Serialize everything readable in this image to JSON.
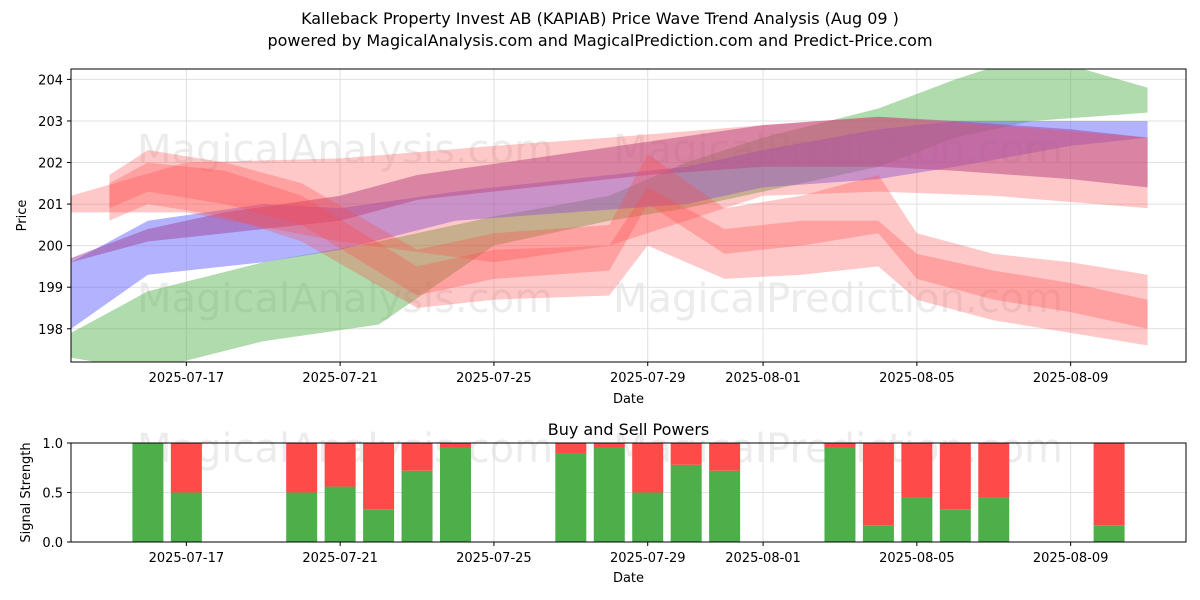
{
  "title": "Kalleback Property Invest AB (KAPIAB) Price Wave Trend Analysis (Aug 09 )",
  "subtitle": "powered by MagicalAnalysis.com and MagicalPrediction.com and Predict-Price.com",
  "watermarks": [
    "MagicalAnalysis.com",
    "MagicalPrediction.com"
  ],
  "colors": {
    "green": "#4daf4a",
    "red": "#ff4a4a",
    "blue": "#6666ff",
    "purple": "#a04fa0"
  },
  "chart_data": [
    {
      "type": "area",
      "title": "",
      "xlabel": "Date",
      "ylabel": "Price",
      "xlim": [
        "2025-07-14",
        "2025-08-12"
      ],
      "ylim": [
        197.2,
        204.25
      ],
      "x_ticks": [
        "2025-07-17",
        "2025-07-21",
        "2025-07-25",
        "2025-07-29",
        "2025-08-01",
        "2025-08-05",
        "2025-08-09"
      ],
      "y_ticks": [
        198,
        199,
        200,
        201,
        202,
        203,
        204
      ],
      "grid": true,
      "bands": [
        {
          "color": "green",
          "x": [
            "2025-07-14",
            "2025-07-16",
            "2025-07-19",
            "2025-07-22",
            "2025-07-25",
            "2025-07-28",
            "2025-07-30",
            "2025-08-01",
            "2025-08-04",
            "2025-08-06",
            "2025-08-08",
            "2025-08-11"
          ],
          "upper": [
            197.9,
            198.9,
            199.6,
            200.1,
            200.7,
            201.2,
            202.0,
            202.6,
            203.3,
            204.0,
            204.6,
            203.8
          ],
          "lower": [
            197.3,
            197.0,
            197.7,
            198.1,
            200.0,
            200.6,
            200.9,
            201.3,
            201.9,
            202.6,
            203.0,
            203.2
          ]
        },
        {
          "color": "blue",
          "x": [
            "2025-07-14",
            "2025-07-16",
            "2025-07-19",
            "2025-07-21",
            "2025-07-24",
            "2025-07-27",
            "2025-07-30",
            "2025-08-01",
            "2025-08-04",
            "2025-08-06",
            "2025-08-09",
            "2025-08-11"
          ],
          "upper": [
            199.6,
            200.6,
            201.0,
            200.9,
            201.3,
            201.6,
            201.9,
            202.3,
            202.8,
            203.0,
            203.0,
            203.0
          ],
          "lower": [
            198.0,
            199.3,
            199.6,
            199.9,
            200.6,
            200.8,
            201.0,
            201.4,
            201.6,
            201.9,
            202.4,
            202.6
          ]
        },
        {
          "color": "purple",
          "x": [
            "2025-07-14",
            "2025-07-16",
            "2025-07-18",
            "2025-07-21",
            "2025-07-23",
            "2025-07-26",
            "2025-07-29",
            "2025-08-01",
            "2025-08-04",
            "2025-08-06",
            "2025-08-09",
            "2025-08-11"
          ],
          "upper": [
            199.7,
            200.4,
            200.8,
            201.2,
            201.7,
            202.1,
            202.5,
            202.9,
            203.1,
            203.0,
            202.8,
            202.6
          ],
          "lower": [
            199.6,
            200.1,
            200.3,
            200.6,
            201.1,
            201.4,
            201.7,
            201.9,
            201.9,
            201.8,
            201.6,
            201.4
          ]
        },
        {
          "color": "red",
          "x": [
            "2025-07-14",
            "2025-07-17",
            "2025-07-21",
            "2025-07-25",
            "2025-07-28",
            "2025-08-01",
            "2025-08-04",
            "2025-08-07",
            "2025-08-11"
          ],
          "upper": [
            201.2,
            202.0,
            202.1,
            202.4,
            202.6,
            202.9,
            203.1,
            202.9,
            202.6
          ],
          "lower": [
            200.8,
            200.8,
            200.1,
            199.6,
            200.0,
            201.2,
            201.3,
            201.2,
            200.9
          ]
        },
        {
          "color": "red",
          "x": [
            "2025-07-15",
            "2025-07-16",
            "2025-07-18",
            "2025-07-20",
            "2025-07-23",
            "2025-07-25",
            "2025-07-28",
            "2025-07-29",
            "2025-07-31",
            "2025-08-02",
            "2025-08-04",
            "2025-08-05",
            "2025-08-07",
            "2025-08-09",
            "2025-08-11"
          ],
          "upper": [
            201.7,
            202.3,
            202.0,
            201.5,
            199.9,
            200.3,
            200.5,
            202.2,
            200.9,
            201.2,
            201.7,
            200.3,
            199.8,
            199.6,
            199.3
          ],
          "lower": [
            200.9,
            201.3,
            201.0,
            200.5,
            198.8,
            199.2,
            199.4,
            201.0,
            199.8,
            200.0,
            200.3,
            199.2,
            198.7,
            198.4,
            198.0
          ]
        },
        {
          "color": "red",
          "x": [
            "2025-07-15",
            "2025-07-16",
            "2025-07-18",
            "2025-07-20",
            "2025-07-23",
            "2025-07-25",
            "2025-07-28",
            "2025-07-29",
            "2025-07-31",
            "2025-08-02",
            "2025-08-04",
            "2025-08-05",
            "2025-08-07",
            "2025-08-09",
            "2025-08-11"
          ],
          "upper": [
            201.5,
            202.0,
            201.8,
            201.2,
            199.5,
            199.9,
            200.0,
            201.4,
            200.4,
            200.6,
            200.6,
            199.8,
            199.4,
            199.1,
            198.7
          ],
          "lower": [
            200.6,
            201.0,
            200.7,
            200.1,
            198.5,
            198.7,
            198.8,
            200.0,
            199.2,
            199.3,
            199.5,
            198.7,
            198.2,
            197.9,
            197.6
          ]
        }
      ]
    },
    {
      "type": "bar",
      "title": "Buy and Sell Powers",
      "xlabel": "Date",
      "ylabel": "Signal Strength",
      "ylim": [
        0,
        1.0
      ],
      "y_ticks": [
        "0.0",
        "0.5",
        "1.0"
      ],
      "x_ticks": [
        "2025-07-17",
        "2025-07-21",
        "2025-07-25",
        "2025-07-29",
        "2025-08-01",
        "2025-08-05",
        "2025-08-09"
      ],
      "series": [
        {
          "name": "Buy",
          "color": "green",
          "values": [
            1.0,
            0.5,
            0.5,
            0.56,
            0.33,
            0.72,
            0.95,
            0.89,
            0.95,
            0.5,
            0.78,
            0.72,
            0.95,
            0.17,
            0.45,
            0.33,
            0.45,
            0.17
          ]
        },
        {
          "name": "Sell",
          "color": "red",
          "values": [
            0.0,
            0.5,
            0.5,
            0.44,
            0.67,
            0.28,
            0.05,
            0.11,
            0.05,
            0.5,
            0.22,
            0.28,
            0.05,
            0.83,
            0.55,
            0.67,
            0.55,
            0.83
          ]
        }
      ],
      "dates": [
        "2025-07-16",
        "2025-07-17",
        "2025-07-20",
        "2025-07-21",
        "2025-07-22",
        "2025-07-23",
        "2025-07-24",
        "2025-07-27",
        "2025-07-28",
        "2025-07-29",
        "2025-07-30",
        "2025-07-31",
        "2025-08-03",
        "2025-08-04",
        "2025-08-05",
        "2025-08-06",
        "2025-08-07",
        "2025-08-10"
      ]
    }
  ]
}
